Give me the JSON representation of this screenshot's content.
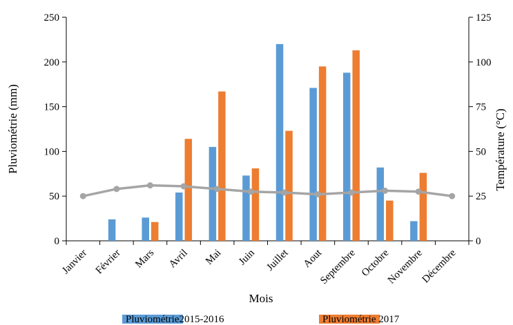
{
  "chart_data": {
    "type": "bar",
    "categories": [
      "Janvier",
      "Février",
      "Mars",
      "Avril",
      "Mai",
      "Juin",
      "Juillet",
      "Aout",
      "Septembre",
      "Octobre",
      "Novembre",
      "Décembre"
    ],
    "series": [
      {
        "name": "Pluviométrie2015-2016",
        "type": "bar",
        "axis": "left",
        "color": "#5b9bd5",
        "values": [
          0,
          24,
          26,
          54,
          105,
          73,
          220,
          171,
          188,
          82,
          22,
          0
        ]
      },
      {
        "name": "Pluviométrie 2017",
        "type": "bar",
        "axis": "left",
        "color": "#ed7d31",
        "values": [
          0,
          0,
          21,
          114,
          167,
          81,
          123,
          195,
          213,
          45,
          76,
          0
        ]
      },
      {
        "name": "",
        "type": "line",
        "axis": "right",
        "color": "#a5a5a5",
        "values": [
          25,
          29,
          31,
          30.5,
          29,
          27.5,
          27,
          26,
          27,
          28,
          27.5,
          25
        ]
      }
    ],
    "xlabel": "Mois",
    "ylabel": "Pluviométrie (mm)",
    "y2label": "Température (°C)",
    "ylim": [
      0,
      250
    ],
    "y2lim": [
      0,
      125
    ],
    "yticks": [
      "0",
      "50",
      "100",
      "150",
      "200",
      "250"
    ],
    "y2ticks": [
      "0",
      "25",
      "50",
      "75",
      "100",
      "125"
    ],
    "grid": false,
    "legend_position": "bottom"
  }
}
